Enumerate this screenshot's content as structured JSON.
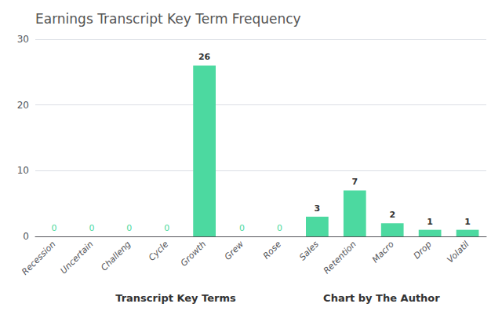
{
  "chart_data": {
    "type": "bar",
    "title": "Earnings Transcript Key Term Frequency",
    "xlabel": "Transcript Key Terms",
    "annotations": [
      "Chart by The Author"
    ],
    "categories": [
      "Recession",
      "Uncertain",
      "Challeng",
      "Cycle",
      "Growth",
      "Grew",
      "Rose",
      "Sales",
      "Retention",
      "Macro",
      "Drop",
      "Volatil"
    ],
    "values": [
      0,
      0,
      0,
      0,
      26,
      0,
      0,
      3,
      7,
      2,
      1,
      1
    ],
    "color": "#4CD9A0",
    "ylim": [
      0,
      30
    ],
    "yticks": [
      0,
      10,
      20,
      30
    ],
    "grid": true,
    "data_labels": true
  }
}
